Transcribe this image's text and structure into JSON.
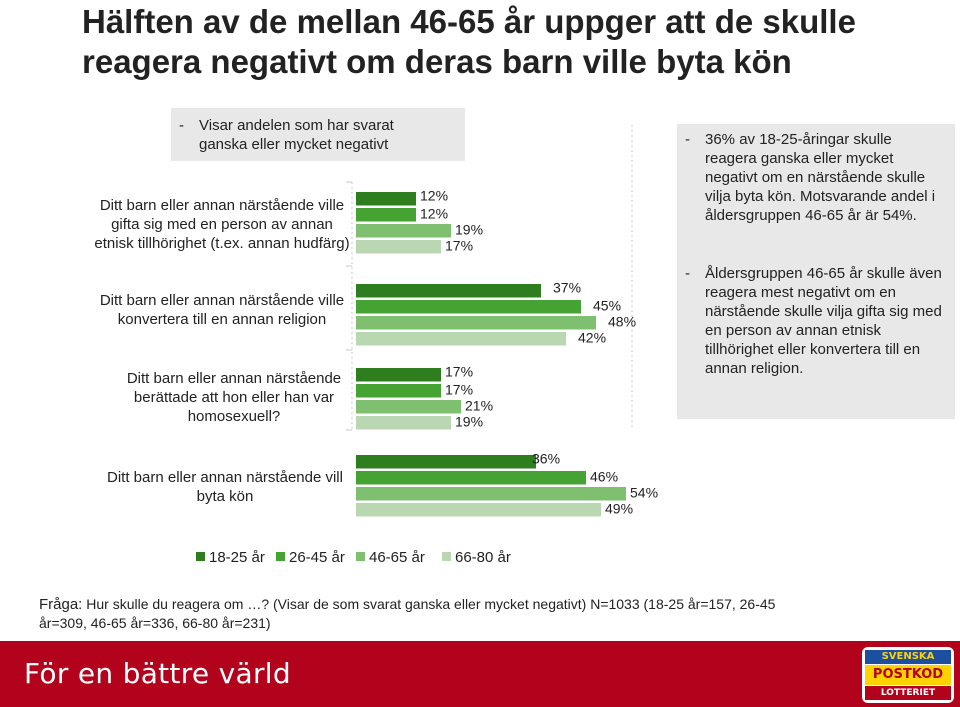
{
  "title": "Hälften av de mellan 46-65 år uppger att de skulle reagera negativt om deras barn ville byta kön",
  "subtitle": {
    "dash": "-",
    "text": "Visar andelen som har svarat ganska eller mycket negativt"
  },
  "chart_data": {
    "type": "bar",
    "orientation": "horizontal",
    "categories": [
      "Ditt barn eller annan närstående ville gifta sig med en person av annan etnisk tillhörighet (t.ex. annan hudfärg)",
      "Ditt barn eller annan närstående ville konvertera till en annan religion",
      "Ditt barn eller annan närstående berättade att hon eller han var homosexuell?",
      "Ditt barn eller annan närstående vill byta kön"
    ],
    "series": [
      {
        "name": "18-25 år",
        "values": [
          12,
          37,
          17,
          36
        ],
        "color": "#2e7d1e"
      },
      {
        "name": "26-45 år",
        "values": [
          12,
          45,
          17,
          46
        ],
        "color": "#45a333"
      },
      {
        "name": "46-65 år",
        "values": [
          19,
          48,
          21,
          54
        ],
        "color": "#7fbf70"
      },
      {
        "name": "66-80 år",
        "values": [
          17,
          42,
          19,
          49
        ],
        "color": "#b9d8b1"
      }
    ],
    "value_suffix": "%",
    "xlim": [
      0,
      60
    ],
    "grid": false,
    "legend_position": "bottom"
  },
  "notes": [
    {
      "dash": "-",
      "text": "36% av 18-25-åringar skulle reagera ganska eller mycket negativt om en närstående skulle vilja byta kön. Motsvarande andel i åldersgruppen 46-65 år är 54%."
    },
    {
      "dash": "-",
      "text": "Åldersgruppen 46-65 år skulle även reagera mest negativt om en närstående skulle vilja gifta sig med en person av annan etnisk tillhörighet eller konvertera till en annan religion."
    }
  ],
  "question": {
    "label": "Fråga:",
    "text": "Hur skulle du reagera om …? (Visar de som svarat ganska eller mycket negativt) N=1033 (18-25 år=157, 26-45 år=309, 46-65 år=336, 66-80 år=231)"
  },
  "footer": {
    "tagline": "För en bättre värld",
    "logo_line1": "SVENSKA",
    "logo_line2": "POSTKOD",
    "logo_line3": "LOTTERIET"
  }
}
